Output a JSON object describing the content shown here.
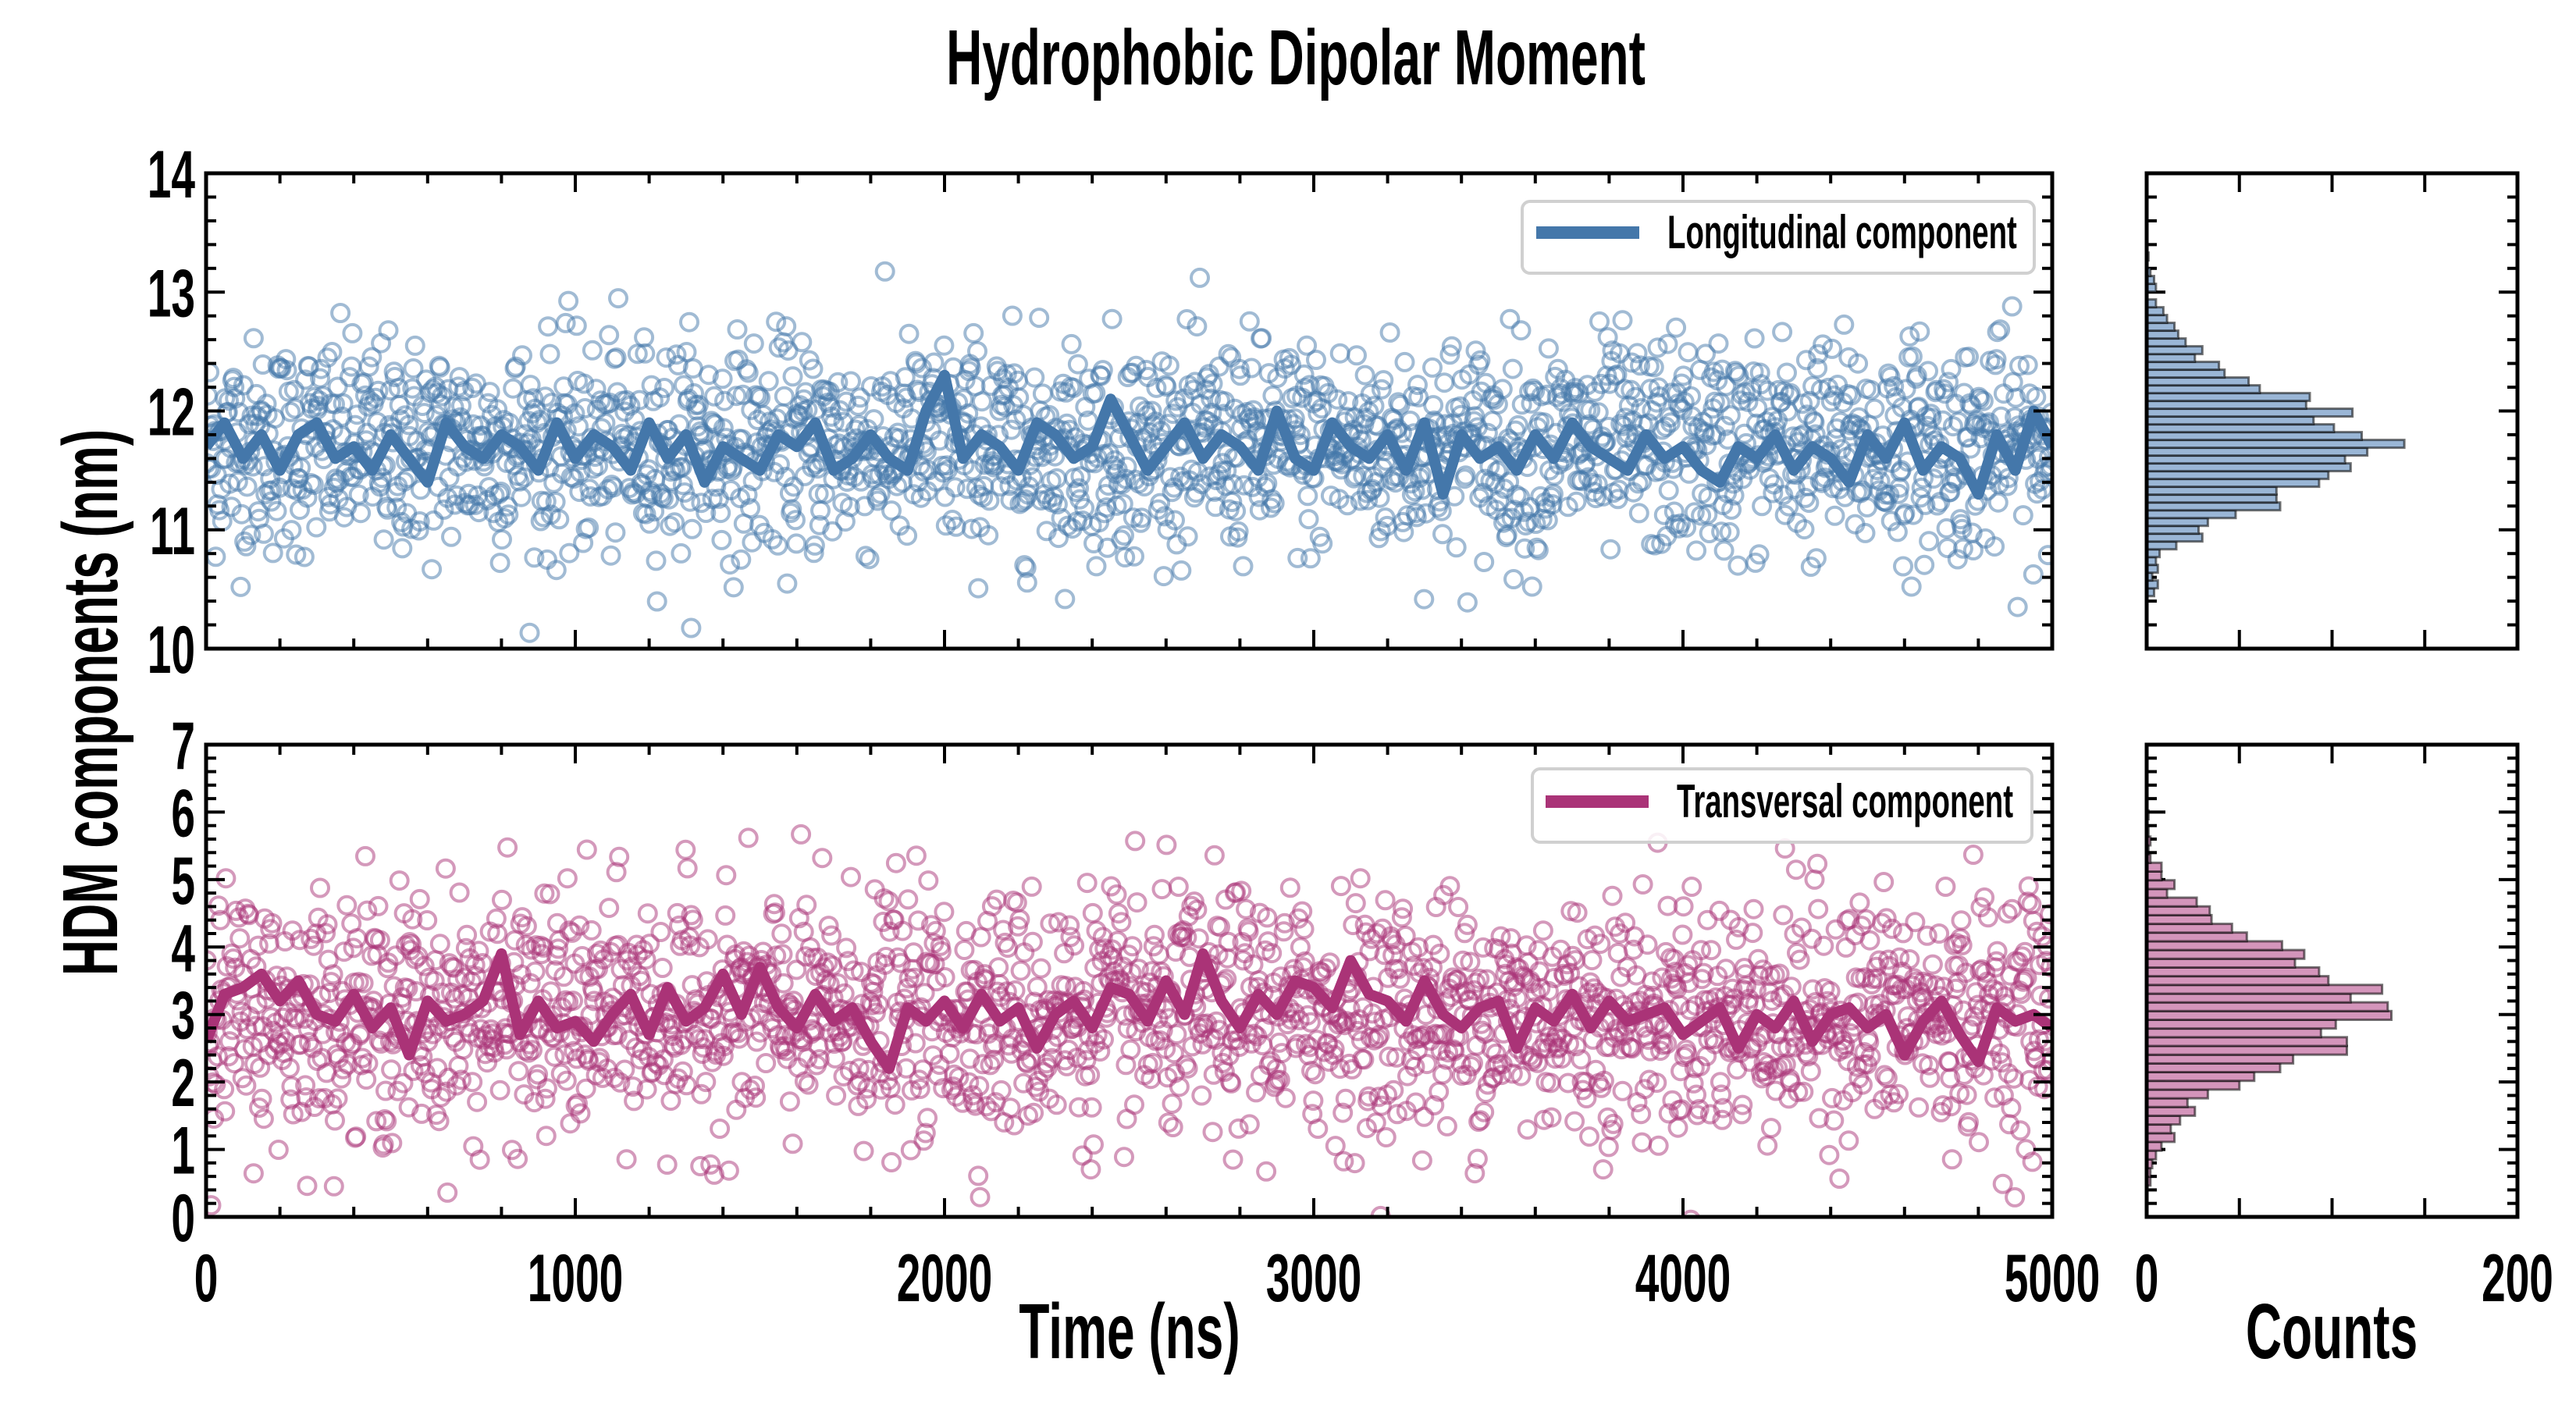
{
  "chart_data": [
    {
      "type": "scatter",
      "title": "Hydrophobic Dipolar Moment",
      "xlabel": "Time (ns)",
      "ylabel": "HDM components (nm)",
      "xlim": [
        0,
        5000
      ],
      "ylim": [
        10,
        14
      ],
      "xticks": [
        "0",
        "1000",
        "2000",
        "3000",
        "4000",
        "5000"
      ],
      "yticks": [
        "10",
        "11",
        "12",
        "13",
        "14"
      ],
      "legend": {
        "label": "Longitudinal component",
        "placement": "top-right"
      },
      "color": "#4477aa",
      "hist_fill": "#9ab6d6",
      "scatter_summary": {
        "n": 2000,
        "mean": 11.7,
        "std": 0.45,
        "marker": "open-circle"
      },
      "running_average": {
        "x_step": 50,
        "y": [
          11.7,
          11.9,
          11.6,
          11.8,
          11.5,
          11.8,
          11.9,
          11.6,
          11.7,
          11.5,
          11.8,
          11.6,
          11.4,
          11.9,
          11.7,
          11.6,
          11.8,
          11.7,
          11.5,
          11.9,
          11.6,
          11.8,
          11.7,
          11.5,
          11.9,
          11.6,
          11.8,
          11.4,
          11.7,
          11.6,
          11.5,
          11.8,
          11.7,
          11.9,
          11.5,
          11.6,
          11.8,
          11.6,
          11.5,
          12.0,
          12.3,
          11.6,
          11.8,
          11.7,
          11.5,
          11.9,
          11.8,
          11.6,
          11.7,
          12.1,
          11.8,
          11.5,
          11.7,
          11.9,
          11.6,
          11.8,
          11.7,
          11.5,
          12.0,
          11.6,
          11.5,
          11.9,
          11.7,
          11.6,
          11.8,
          11.5,
          11.9,
          11.3,
          11.8,
          11.6,
          11.7,
          11.5,
          11.8,
          11.6,
          11.9,
          11.7,
          11.6,
          11.5,
          11.8,
          11.6,
          11.7,
          11.5,
          11.4,
          11.7,
          11.6,
          11.8,
          11.5,
          11.7,
          11.6,
          11.4,
          11.8,
          11.6,
          11.9,
          11.5,
          11.7,
          11.6,
          11.3,
          11.8,
          11.5,
          12.0,
          11.7
        ]
      },
      "histogram": {
        "xlabel": "Counts",
        "xlim": [
          0,
          200
        ],
        "xticks": [
          "0",
          "200"
        ],
        "bin_center_range": [
          10.475,
          13.3
        ],
        "counts_low_to_high": [
          4,
          6,
          3,
          6,
          5,
          7,
          16,
          30,
          28,
          33,
          48,
          72,
          70,
          70,
          93,
          98,
          110,
          107,
          119,
          139,
          116,
          101,
          90,
          111,
          86,
          88,
          61,
          55,
          42,
          39,
          26,
          30,
          21,
          17,
          15,
          11,
          9,
          5,
          0,
          5,
          4,
          2,
          0,
          1
        ]
      }
    },
    {
      "type": "scatter",
      "xlabel": "Time (ns)",
      "ylabel": "HDM components (nm)",
      "xlim": [
        0,
        5000
      ],
      "ylim": [
        0,
        7
      ],
      "xticks": [
        "0",
        "1000",
        "2000",
        "3000",
        "4000",
        "5000"
      ],
      "yticks": [
        "0",
        "1",
        "2",
        "3",
        "4",
        "5",
        "6",
        "7"
      ],
      "legend": {
        "label": "Transversal component",
        "placement": "top-right"
      },
      "color": "#aa3377",
      "hist_fill": "#d495bb",
      "scatter_summary": {
        "n": 2000,
        "mean": 3.0,
        "std": 0.9,
        "marker": "open-circle"
      },
      "running_average": {
        "x_step": 50,
        "y": [
          2.6,
          3.3,
          3.4,
          3.6,
          3.2,
          3.5,
          3.0,
          2.9,
          3.3,
          2.8,
          3.1,
          2.4,
          3.2,
          2.9,
          3.0,
          3.2,
          3.9,
          2.7,
          3.2,
          2.8,
          2.9,
          2.6,
          3.0,
          3.3,
          2.7,
          3.4,
          2.9,
          3.1,
          3.6,
          3.0,
          3.7,
          3.1,
          2.8,
          3.3,
          2.9,
          3.1,
          2.6,
          2.2,
          3.1,
          2.9,
          3.2,
          2.8,
          3.3,
          2.9,
          3.1,
          2.5,
          3.0,
          3.2,
          2.8,
          3.4,
          3.3,
          2.9,
          3.5,
          3.0,
          3.9,
          3.2,
          2.8,
          3.3,
          3.0,
          3.5,
          3.4,
          3.1,
          3.8,
          3.3,
          3.2,
          2.9,
          3.5,
          3.0,
          2.8,
          3.1,
          3.2,
          2.5,
          3.1,
          2.9,
          3.3,
          2.8,
          3.2,
          2.9,
          3.0,
          3.1,
          2.7,
          2.9,
          3.1,
          2.5,
          3.0,
          2.8,
          3.2,
          2.6,
          3.0,
          3.1,
          2.8,
          3.0,
          2.4,
          2.9,
          3.2,
          2.7,
          2.3,
          3.1,
          2.9,
          3.0,
          2.8
        ]
      },
      "histogram": {
        "xlabel": "Counts",
        "xlim": [
          0,
          200
        ],
        "xticks": [
          "0",
          "200"
        ],
        "bin_center_range": [
          0.53,
          5.96
        ],
        "counts_low_to_high": [
          2,
          2,
          3,
          5,
          8,
          15,
          13,
          18,
          26,
          22,
          33,
          50,
          58,
          72,
          79,
          108,
          108,
          94,
          102,
          132,
          130,
          110,
          127,
          98,
          93,
          80,
          85,
          73,
          54,
          46,
          35,
          34,
          27,
          11,
          15,
          8,
          8,
          2,
          1,
          2,
          1,
          0,
          1
        ]
      }
    }
  ]
}
